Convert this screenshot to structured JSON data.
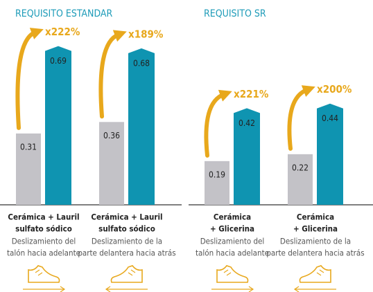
{
  "chart_data": [
    {
      "type": "bar",
      "title": "REQUISITO ESTANDAR",
      "categories": [
        [
          "Cerámica + Lauril",
          "sulfato sódico"
        ],
        [
          "Cerámica + Lauril",
          "sulfato sódico"
        ]
      ],
      "category_notes": [
        [
          "Deslizamiento del",
          "talón hacia adelante"
        ],
        [
          "Deslizamiento de la",
          "parte delantera hacia atrás"
        ]
      ],
      "series": [
        {
          "color": "#c3c2c7",
          "values": [
            0.31,
            0.36
          ]
        },
        {
          "color": "#0f94b1",
          "values": [
            0.69,
            0.68
          ]
        }
      ],
      "annotations": [
        "x222%",
        "x189%"
      ],
      "annotation_color": "#e8a81c",
      "ylim": [
        0,
        0.8
      ]
    },
    {
      "type": "bar",
      "title": "REQUISITO SR",
      "categories": [
        [
          "Cerámica",
          "+ Glicerina"
        ],
        [
          "Cerámica",
          "+ Glicerina"
        ]
      ],
      "category_notes": [
        [
          "Deslizamiento del",
          "talón hacia adelante"
        ],
        [
          "Deslizamiento de la",
          "parte delantera hacia atrás"
        ]
      ],
      "series": [
        {
          "color": "#c3c2c7",
          "values": [
            0.19,
            0.22
          ]
        },
        {
          "color": "#0f94b1",
          "values": [
            0.42,
            0.44
          ]
        }
      ],
      "annotations": [
        "x221%",
        "x200%"
      ],
      "annotation_color": "#e8a81c",
      "ylim": [
        0,
        0.8
      ]
    }
  ]
}
